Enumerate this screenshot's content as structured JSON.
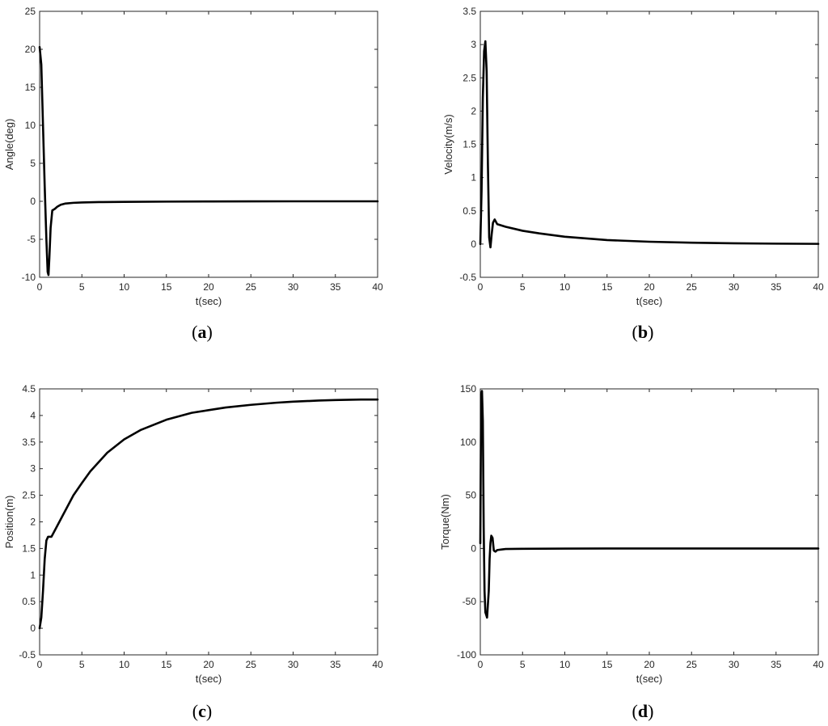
{
  "chart_data": [
    {
      "type": "line",
      "panel": "a",
      "caption": {
        "open": "(",
        "letter": "a",
        "close": ")"
      },
      "xlabel": "t(sec)",
      "ylabel": "Angle(deg)",
      "xlim": [
        0,
        40
      ],
      "ylim": [
        -10,
        25
      ],
      "xticks": [
        0,
        5,
        10,
        15,
        20,
        25,
        30,
        35,
        40
      ],
      "yticks": [
        -10,
        -5,
        0,
        5,
        10,
        15,
        20,
        25
      ],
      "grid": false,
      "color": "#000000",
      "series": [
        {
          "x": [
            0,
            0.2,
            0.4,
            0.6,
            0.8,
            0.95,
            1.05,
            1.15,
            1.3,
            1.5,
            1.8,
            2.1,
            2.5,
            3,
            4,
            5,
            7,
            10,
            15,
            20,
            25,
            30,
            35,
            40
          ],
          "y": [
            20.3,
            18.0,
            10.0,
            2.0,
            -5.0,
            -9.3,
            -9.7,
            -7.5,
            -3.5,
            -1.2,
            -1.0,
            -0.7,
            -0.45,
            -0.3,
            -0.2,
            -0.15,
            -0.1,
            -0.07,
            -0.04,
            -0.02,
            -0.01,
            0,
            0,
            0
          ]
        }
      ]
    },
    {
      "type": "line",
      "panel": "b",
      "caption": {
        "open": "(",
        "letter": "b",
        "close": ")"
      },
      "xlabel": "t(sec)",
      "ylabel": "Velocity(m/s)",
      "xlim": [
        0,
        40
      ],
      "ylim": [
        -0.5,
        3.5
      ],
      "xticks": [
        0,
        5,
        10,
        15,
        20,
        25,
        30,
        35,
        40
      ],
      "yticks": [
        -0.5,
        0,
        0.5,
        1,
        1.5,
        2,
        2.5,
        3,
        3.5
      ],
      "grid": false,
      "color": "#000000",
      "series": [
        {
          "x": [
            0,
            0.15,
            0.3,
            0.45,
            0.6,
            0.75,
            0.9,
            1.05,
            1.2,
            1.35,
            1.5,
            1.7,
            2,
            3,
            5,
            7,
            10,
            15,
            20,
            25,
            30,
            35,
            40
          ],
          "y": [
            0,
            0.8,
            2.2,
            2.9,
            3.05,
            2.6,
            1.2,
            0.1,
            -0.05,
            0.15,
            0.32,
            0.37,
            0.3,
            0.26,
            0.2,
            0.16,
            0.11,
            0.06,
            0.035,
            0.02,
            0.012,
            0.006,
            0.003
          ]
        }
      ]
    },
    {
      "type": "line",
      "panel": "c",
      "caption": {
        "open": "(",
        "letter": "c",
        "close": ")"
      },
      "xlabel": "t(sec)",
      "ylabel": "Position(m)",
      "xlim": [
        0,
        40
      ],
      "ylim": [
        -0.5,
        4.5
      ],
      "xticks": [
        0,
        5,
        10,
        15,
        20,
        25,
        30,
        35,
        40
      ],
      "yticks": [
        -0.5,
        0,
        0.5,
        1,
        1.5,
        2,
        2.5,
        3,
        3.5,
        4,
        4.5
      ],
      "grid": false,
      "color": "#000000",
      "series": [
        {
          "x": [
            0,
            0.2,
            0.4,
            0.6,
            0.8,
            1.0,
            1.2,
            1.4,
            1.6,
            2,
            3,
            4,
            5,
            6,
            8,
            10,
            12,
            15,
            18,
            20,
            22,
            25,
            28,
            30,
            33,
            35,
            38,
            40
          ],
          "y": [
            0,
            0.2,
            0.7,
            1.3,
            1.65,
            1.72,
            1.72,
            1.72,
            1.78,
            1.9,
            2.2,
            2.5,
            2.73,
            2.95,
            3.3,
            3.55,
            3.73,
            3.92,
            4.05,
            4.1,
            4.15,
            4.2,
            4.24,
            4.26,
            4.28,
            4.29,
            4.3,
            4.3
          ]
        }
      ]
    },
    {
      "type": "line",
      "panel": "d",
      "caption": {
        "open": "(",
        "letter": "d",
        "close": ")"
      },
      "xlabel": "t(sec)",
      "ylabel": "Torque(Nm)",
      "xlim": [
        0,
        40
      ],
      "ylim": [
        -100,
        150
      ],
      "xticks": [
        0,
        5,
        10,
        15,
        20,
        25,
        30,
        35,
        40
      ],
      "yticks": [
        -100,
        -50,
        0,
        50,
        100,
        150
      ],
      "grid": false,
      "color": "#000000",
      "series": [
        {
          "x": [
            0,
            0.1,
            0.2,
            0.3,
            0.4,
            0.5,
            0.6,
            0.8,
            1.0,
            1.1,
            1.2,
            1.3,
            1.45,
            1.6,
            1.8,
            2,
            2.5,
            3,
            5,
            10,
            15,
            20,
            30,
            40
          ],
          "y": [
            5,
            145,
            148,
            120,
            20,
            -40,
            -60,
            -65,
            -40,
            -10,
            5,
            12,
            10,
            -2,
            -3,
            -1.5,
            -1,
            -0.5,
            -0.3,
            -0.1,
            0,
            0,
            0,
            0
          ]
        }
      ]
    }
  ]
}
